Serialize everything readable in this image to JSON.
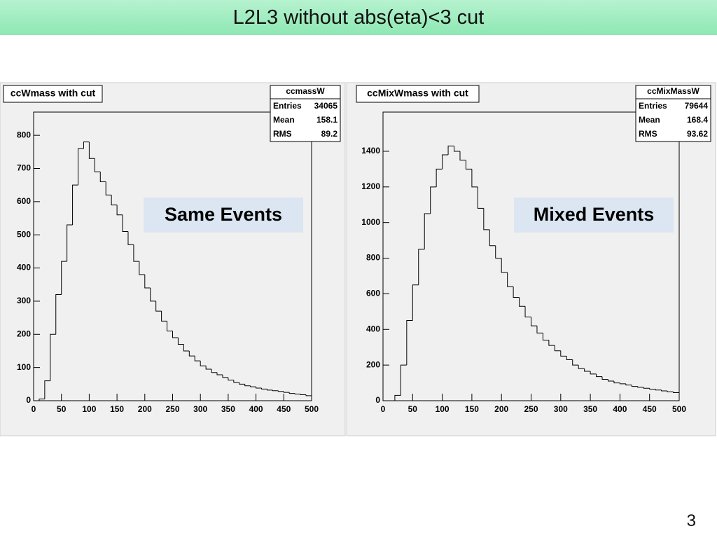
{
  "slide": {
    "title": "L2L3 without abs(eta)<3 cut",
    "page_number": "3"
  },
  "chart_data": [
    {
      "type": "histogram",
      "title": "ccWmass with cut",
      "annotation": "Same Events",
      "stats": {
        "name": "ccmassW",
        "rows": [
          [
            "Entries",
            34065
          ],
          [
            "Mean",
            158.1
          ],
          [
            "RMS",
            89.2
          ]
        ]
      },
      "bins": [
        0,
        10,
        20,
        30,
        40,
        50,
        60,
        70,
        80,
        90,
        100,
        110,
        120,
        130,
        140,
        150,
        160,
        170,
        180,
        190,
        200,
        210,
        220,
        230,
        240,
        250,
        260,
        270,
        280,
        290,
        300,
        310,
        320,
        330,
        340,
        350,
        360,
        370,
        380,
        390,
        400,
        410,
        420,
        430,
        440,
        450,
        460,
        470,
        480,
        490,
        500
      ],
      "values": [
        0,
        5,
        60,
        200,
        320,
        420,
        530,
        650,
        760,
        780,
        730,
        690,
        660,
        620,
        590,
        560,
        510,
        470,
        420,
        380,
        340,
        300,
        270,
        240,
        210,
        190,
        170,
        150,
        135,
        120,
        105,
        95,
        85,
        78,
        70,
        62,
        55,
        50,
        45,
        42,
        38,
        35,
        32,
        30,
        28,
        25,
        22,
        20,
        18,
        15
      ],
      "color": "#000000",
      "xlim": [
        0,
        500
      ],
      "xticks": [
        0,
        50,
        100,
        150,
        200,
        250,
        300,
        350,
        400,
        450,
        500
      ],
      "ylim": [
        0,
        870
      ],
      "yticks": [
        0,
        100,
        200,
        300,
        400,
        500,
        600,
        700,
        800
      ]
    },
    {
      "type": "histogram",
      "title": "ccMixWmass with cut",
      "annotation": "Mixed Events",
      "stats": {
        "name": "ccMixMassW",
        "rows": [
          [
            "Entries",
            79644
          ],
          [
            "Mean",
            168.4
          ],
          [
            "RMS",
            93.62
          ]
        ]
      },
      "bins": [
        0,
        10,
        20,
        30,
        40,
        50,
        60,
        70,
        80,
        90,
        100,
        110,
        120,
        130,
        140,
        150,
        160,
        170,
        180,
        190,
        200,
        210,
        220,
        230,
        240,
        250,
        260,
        270,
        280,
        290,
        300,
        310,
        320,
        330,
        340,
        350,
        360,
        370,
        380,
        390,
        400,
        410,
        420,
        430,
        440,
        450,
        460,
        470,
        480,
        490,
        500
      ],
      "values": [
        0,
        0,
        30,
        200,
        450,
        650,
        850,
        1050,
        1200,
        1300,
        1380,
        1430,
        1400,
        1350,
        1300,
        1200,
        1080,
        960,
        870,
        800,
        720,
        640,
        580,
        530,
        470,
        420,
        380,
        340,
        310,
        280,
        250,
        230,
        200,
        180,
        165,
        150,
        135,
        120,
        110,
        100,
        95,
        88,
        80,
        75,
        70,
        65,
        60,
        55,
        50,
        45
      ],
      "color": "#000000",
      "xlim": [
        0,
        500
      ],
      "xticks": [
        0,
        50,
        100,
        150,
        200,
        250,
        300,
        350,
        400,
        450,
        500
      ],
      "ylim": [
        0,
        1620
      ],
      "yticks": [
        0,
        200,
        400,
        600,
        800,
        1000,
        1200,
        1400
      ]
    }
  ]
}
